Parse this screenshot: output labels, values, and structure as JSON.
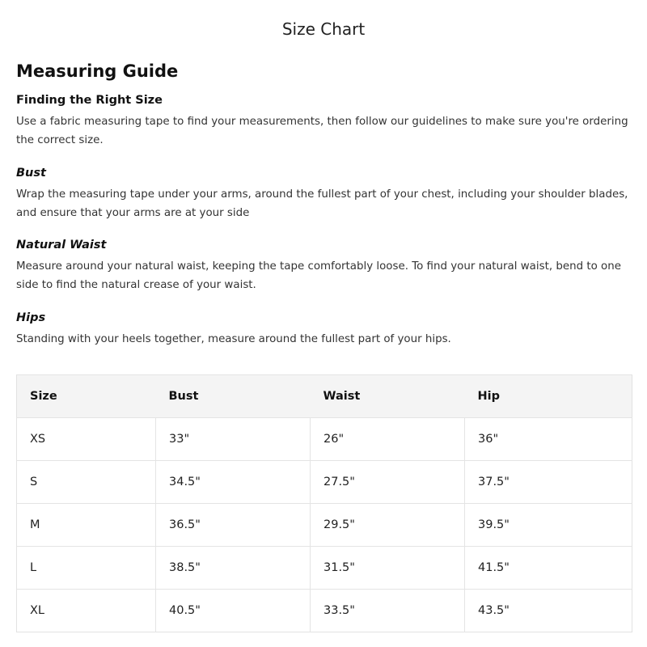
{
  "title": "Size Chart",
  "guide": {
    "heading": "Measuring Guide",
    "sections": [
      {
        "title": "Finding the Right Size",
        "text": "Use a fabric measuring tape to find your measurements, then follow our guidelines to make sure you're ordering the correct size."
      },
      {
        "title": "Bust",
        "text": "Wrap the measuring tape under your arms, around the fullest part of your chest, including your shoulder blades, and ensure that your arms are at your side"
      },
      {
        "title": "Natural Waist",
        "text": "Measure around your natural waist, keeping the tape comfortably loose. To find your natural waist, bend to one side to find the natural crease of your waist."
      },
      {
        "title": "Hips",
        "text": "Standing with your heels together, measure around the fullest part of your hips."
      }
    ]
  },
  "table": {
    "headers": [
      "Size",
      "Bust",
      "Waist",
      "Hip"
    ],
    "rows": [
      [
        "XS",
        "33\"",
        "26\"",
        "36\""
      ],
      [
        "S",
        "34.5\"",
        "27.5\"",
        "37.5\""
      ],
      [
        "M",
        "36.5\"",
        "29.5\"",
        "39.5\""
      ],
      [
        "L",
        "38.5\"",
        "31.5\"",
        "41.5\""
      ],
      [
        "XL",
        "40.5\"",
        "33.5\"",
        "43.5\""
      ]
    ]
  }
}
